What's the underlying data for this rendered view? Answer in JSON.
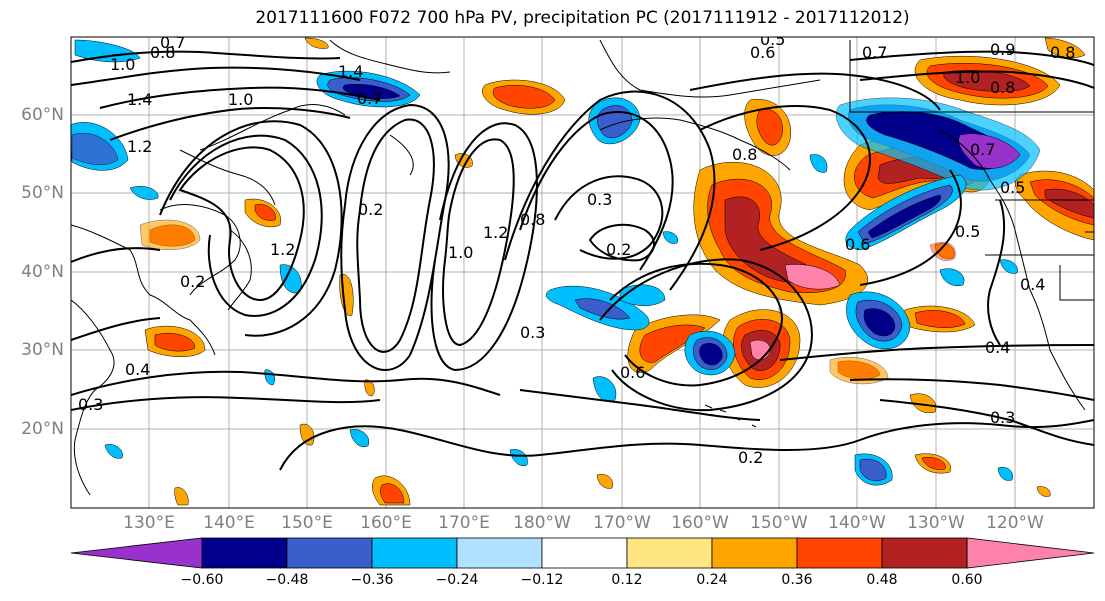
{
  "title": "2017111600 F072 700 hPa PV, precipitation PC (2017111912 - 2017112012)",
  "map": {
    "lat_labels": [
      "60°N",
      "50°N",
      "40°N",
      "30°N",
      "20°N"
    ],
    "lon_labels": [
      "130°E",
      "140°E",
      "150°E",
      "160°E",
      "170°E",
      "180°W",
      "170°W",
      "160°W",
      "150°W",
      "140°W",
      "130°W",
      "120°W"
    ],
    "contour_labels": [
      "0.7",
      "0.8",
      "1.0",
      "1.4",
      "1.0",
      "1.2",
      "1.4",
      "0.7",
      "0.6",
      "0.5",
      "0.7",
      "0.9",
      "1.0",
      "0.8",
      "0.8",
      "0.2",
      "0.3",
      "0.2",
      "1.2",
      "1.0",
      "1.2",
      "0.8",
      "0.2",
      "0.6",
      "0.8",
      "0.7",
      "0.5",
      "0.5",
      "0.4",
      "0.4",
      "0.4",
      "0.3",
      "0.6",
      "0.2",
      "0.3",
      "0.3"
    ]
  },
  "colorbar": {
    "tick_labels": [
      "−0.60",
      "−0.48",
      "−0.36",
      "−0.24",
      "−0.12",
      "0.12",
      "0.24",
      "0.36",
      "0.48",
      "0.60"
    ],
    "colors": [
      "#9932cc",
      "#00008b",
      "#3a5fcd",
      "#00bfff",
      "#b0e2ff",
      "#ffffff",
      "#ffe680",
      "#ffa500",
      "#ff4500",
      "#b22222",
      "#ff82ab"
    ]
  }
}
